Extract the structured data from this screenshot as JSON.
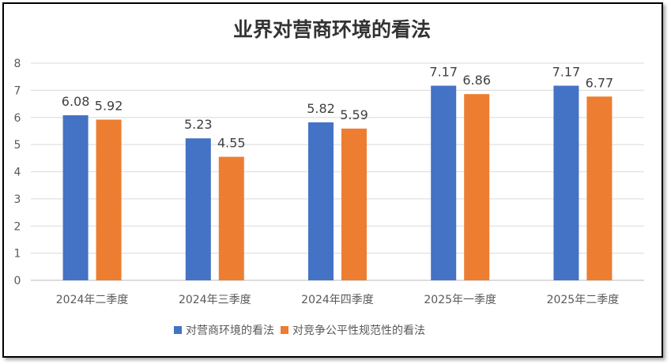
{
  "chart_data": {
    "type": "bar",
    "title": "业界对营商环境的看法",
    "categories": [
      "2024年二季度",
      "2024年三季度",
      "2024年四季度",
      "2025年一季度",
      "2025年二季度"
    ],
    "series": [
      {
        "name": "对营商环境的看法",
        "values": [
          6.08,
          5.23,
          5.82,
          7.17,
          7.17
        ],
        "color": "#4472C4"
      },
      {
        "name": "对竞争公平性规范性的看法",
        "values": [
          5.92,
          4.55,
          5.59,
          6.86,
          6.77
        ],
        "color": "#ED7D31"
      }
    ],
    "yticks": [
      "0",
      "1",
      "2",
      "3",
      "4",
      "5",
      "6",
      "7",
      "8"
    ],
    "ylim": [
      0,
      8
    ],
    "grid": true,
    "legend": "bottom",
    "data_labels": true
  }
}
